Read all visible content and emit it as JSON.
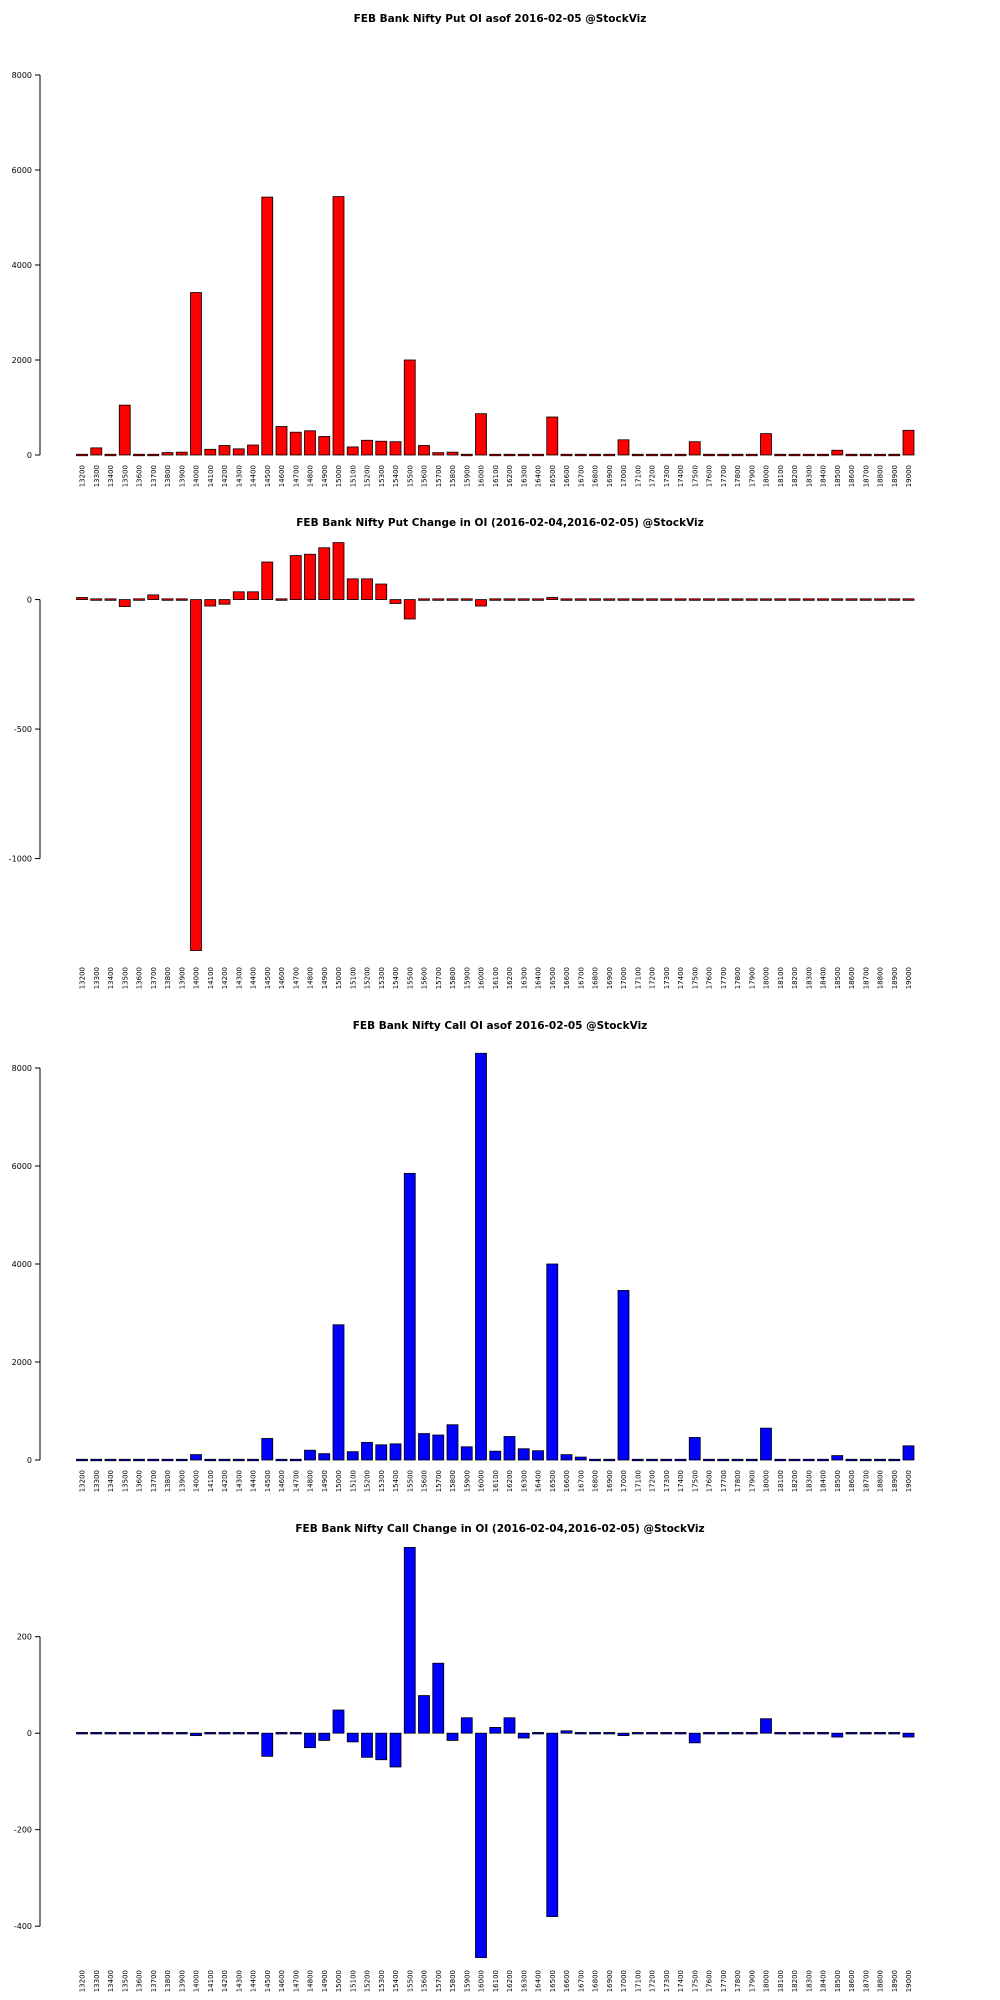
{
  "chart_data": [
    {
      "type": "bar",
      "title": "FEB Bank Nifty Put OI asof 2016-02-05 @StockViz",
      "color": "#ff0000",
      "ylim": [
        0,
        8000
      ],
      "yticks": [
        0,
        2000,
        4000,
        6000,
        8000
      ],
      "categories": [
        "13200",
        "13300",
        "13400",
        "13500",
        "13600",
        "13700",
        "13800",
        "13900",
        "14000",
        "14100",
        "14200",
        "14300",
        "14400",
        "14500",
        "14600",
        "14700",
        "14800",
        "14900",
        "15000",
        "15100",
        "15200",
        "15300",
        "15400",
        "15500",
        "15600",
        "15700",
        "15800",
        "15900",
        "16000",
        "16100",
        "16200",
        "16300",
        "16400",
        "16500",
        "16600",
        "16700",
        "16800",
        "16900",
        "17000",
        "17100",
        "17200",
        "17300",
        "17400",
        "17500",
        "17600",
        "17700",
        "17800",
        "17900",
        "18000",
        "18100",
        "18200",
        "18300",
        "18400",
        "18500",
        "18600",
        "18700",
        "18800",
        "18900",
        "19000"
      ],
      "values": [
        25,
        150,
        10,
        1050,
        25,
        25,
        50,
        60,
        3420,
        120,
        200,
        130,
        210,
        5430,
        600,
        480,
        510,
        390,
        5440,
        170,
        310,
        290,
        280,
        2000,
        200,
        50,
        60,
        10,
        870,
        5,
        20,
        5,
        5,
        800,
        0,
        0,
        0,
        0,
        320,
        0,
        0,
        0,
        0,
        280,
        0,
        0,
        0,
        0,
        450,
        0,
        0,
        0,
        0,
        100,
        0,
        0,
        0,
        0,
        520
      ]
    },
    {
      "type": "bar",
      "title": "FEB Bank Nifty Put Change in OI (2016-02-04,2016-02-05) @StockViz",
      "color": "#ff0000",
      "ylim": [
        -1380,
        230
      ],
      "yticks": [
        -1000,
        -500,
        0
      ],
      "categories": [
        "13200",
        "13300",
        "13400",
        "13500",
        "13600",
        "13700",
        "13800",
        "13900",
        "14000",
        "14100",
        "14200",
        "14300",
        "14400",
        "14500",
        "14600",
        "14700",
        "14800",
        "14900",
        "15000",
        "15100",
        "15200",
        "15300",
        "15400",
        "15500",
        "15600",
        "15700",
        "15800",
        "15900",
        "16000",
        "16100",
        "16200",
        "16300",
        "16400",
        "16500",
        "16600",
        "16700",
        "16800",
        "16900",
        "17000",
        "17100",
        "17200",
        "17300",
        "17400",
        "17500",
        "17600",
        "17700",
        "17800",
        "17900",
        "18000",
        "18100",
        "18200",
        "18300",
        "18400",
        "18500",
        "18600",
        "18700",
        "18800",
        "18900",
        "19000"
      ],
      "values": [
        8,
        -5,
        0,
        -27,
        5,
        18,
        -3,
        -3,
        -1355,
        -25,
        -18,
        30,
        30,
        145,
        5,
        170,
        175,
        200,
        220,
        80,
        80,
        60,
        -15,
        -75,
        -5,
        -3,
        -5,
        -5,
        -25,
        -3,
        0,
        0,
        0,
        8,
        0,
        0,
        0,
        0,
        -3,
        0,
        0,
        0,
        0,
        -3,
        0,
        0,
        0,
        0,
        0,
        0,
        0,
        0,
        0,
        0,
        0,
        0,
        0,
        0,
        0
      ]
    },
    {
      "type": "bar",
      "title": "FEB Bank Nifty Call OI asof 2016-02-05 @StockViz",
      "color": "#0000ff",
      "ylim": [
        0,
        8000
      ],
      "yticks": [
        0,
        2000,
        4000,
        6000,
        8000
      ],
      "categories": [
        "13200",
        "13300",
        "13400",
        "13500",
        "13600",
        "13700",
        "13800",
        "13900",
        "14000",
        "14100",
        "14200",
        "14300",
        "14400",
        "14500",
        "14600",
        "14700",
        "14800",
        "14900",
        "15000",
        "15100",
        "15200",
        "15300",
        "15400",
        "15500",
        "15600",
        "15700",
        "15800",
        "15900",
        "16000",
        "16100",
        "16200",
        "16300",
        "16400",
        "16500",
        "16600",
        "16700",
        "16800",
        "16900",
        "17000",
        "17100",
        "17200",
        "17300",
        "17400",
        "17500",
        "17600",
        "17700",
        "17800",
        "17900",
        "18000",
        "18100",
        "18200",
        "18300",
        "18400",
        "18500",
        "18600",
        "18700",
        "18800",
        "18900",
        "19000"
      ],
      "values": [
        0,
        0,
        0,
        30,
        0,
        0,
        0,
        0,
        110,
        0,
        0,
        0,
        0,
        440,
        0,
        0,
        200,
        130,
        2760,
        170,
        360,
        310,
        330,
        5850,
        540,
        510,
        720,
        270,
        8300,
        180,
        480,
        230,
        190,
        4000,
        110,
        60,
        0,
        0,
        3460,
        0,
        0,
        0,
        0,
        460,
        0,
        0,
        0,
        0,
        650,
        0,
        0,
        0,
        0,
        90,
        0,
        0,
        0,
        0,
        290
      ]
    },
    {
      "type": "bar",
      "title": "FEB Bank Nifty Call Change in OI (2016-02-04,2016-02-05) @StockViz",
      "color": "#0000ff",
      "ylim": [
        -470,
        390
      ],
      "yticks": [
        -400,
        -200,
        0,
        200
      ],
      "categories": [
        "13200",
        "13300",
        "13400",
        "13500",
        "13600",
        "13700",
        "13800",
        "13900",
        "14000",
        "14100",
        "14200",
        "14300",
        "14400",
        "14500",
        "14600",
        "14700",
        "14800",
        "14900",
        "15000",
        "15100",
        "15200",
        "15300",
        "15400",
        "15500",
        "15600",
        "15700",
        "15800",
        "15900",
        "16000",
        "16100",
        "16200",
        "16300",
        "16400",
        "16500",
        "16600",
        "16700",
        "16800",
        "16900",
        "17000",
        "17100",
        "17200",
        "17300",
        "17400",
        "17500",
        "17600",
        "17700",
        "17800",
        "17900",
        "18000",
        "18100",
        "18200",
        "18300",
        "18400",
        "18500",
        "18600",
        "18700",
        "18800",
        "18900",
        "19000"
      ],
      "values": [
        0,
        0,
        0,
        0,
        0,
        0,
        0,
        0,
        -5,
        0,
        0,
        0,
        0,
        -48,
        0,
        -3,
        -30,
        -15,
        48,
        -18,
        -50,
        -55,
        -70,
        385,
        78,
        145,
        -15,
        32,
        -465,
        12,
        32,
        -10,
        0,
        -380,
        5,
        3,
        0,
        -3,
        -5,
        0,
        0,
        0,
        0,
        -20,
        0,
        0,
        0,
        0,
        30,
        0,
        0,
        0,
        0,
        -8,
        0,
        0,
        0,
        0,
        -8
      ]
    }
  ]
}
